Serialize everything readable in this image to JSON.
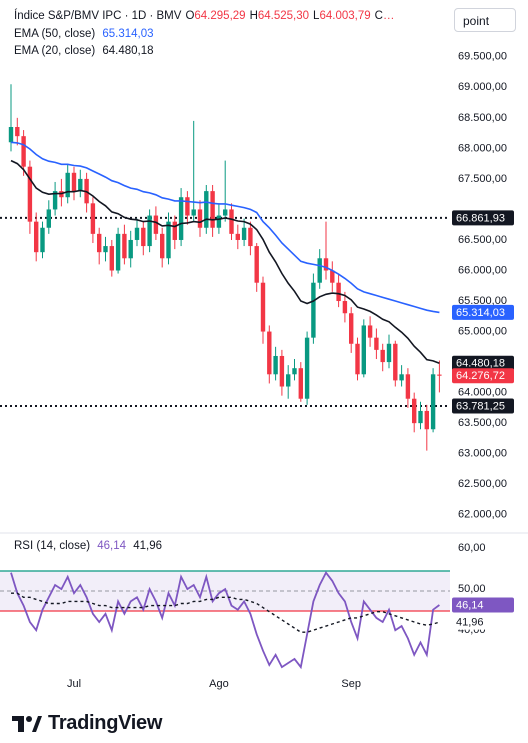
{
  "chart_data": [
    {
      "type": "candlestick",
      "title": "Índice S&P/BMV IPC · 1D · BMV",
      "ohlc_labels": [
        {
          "key": "O",
          "text": "64.295,29"
        },
        {
          "key": "H",
          "text": "64.525,30"
        },
        {
          "key": "L",
          "text": "64.003,79"
        },
        {
          "key": "C",
          "text": "…"
        }
      ],
      "open": [
        68100,
        68350,
        68200,
        67700,
        66800,
        66300,
        66700,
        67000,
        67300,
        67200,
        67600,
        67300,
        67500,
        67100,
        66600,
        66300,
        66400,
        66000,
        66600,
        66200,
        66500,
        66700,
        66400,
        66900,
        66600,
        66200,
        66800,
        66500,
        67200,
        66900,
        67000,
        66700,
        67300,
        66700,
        66900,
        67000,
        66600,
        66500,
        66700,
        66400,
        65800,
        65000,
        64300,
        64600,
        64100,
        64300,
        64400,
        63900,
        64900,
        65800,
        66200,
        66000,
        65800,
        65500,
        65300,
        64800,
        64300,
        65100,
        64900,
        64700,
        64500,
        64800,
        64200,
        64300,
        63900,
        63500,
        63700,
        63400,
        64295.29
      ],
      "high": [
        69050,
        68500,
        68300,
        67800,
        66950,
        66800,
        67150,
        67450,
        67500,
        67750,
        67700,
        67650,
        67600,
        67200,
        66700,
        66550,
        66500,
        66700,
        66750,
        66650,
        66850,
        66800,
        67000,
        67050,
        66700,
        66950,
        66900,
        67350,
        67300,
        68450,
        67150,
        67400,
        67400,
        67100,
        67800,
        67100,
        66750,
        66850,
        66800,
        66450,
        65900,
        65100,
        64750,
        64700,
        64450,
        64550,
        64500,
        65000,
        65950,
        66350,
        66800,
        66150,
        65950,
        65650,
        65400,
        64900,
        65200,
        65250,
        65050,
        64800,
        64950,
        64850,
        64450,
        64400,
        64000,
        63850,
        63800,
        64400,
        64525.3
      ],
      "low": [
        67950,
        68050,
        67550,
        66600,
        66150,
        66200,
        66600,
        66900,
        67050,
        67100,
        67150,
        67200,
        66950,
        66450,
        66100,
        66150,
        65900,
        65950,
        66100,
        66050,
        66400,
        66250,
        66300,
        66500,
        66050,
        66100,
        66350,
        66400,
        66750,
        66800,
        66550,
        66600,
        66550,
        66600,
        66800,
        66500,
        66350,
        66400,
        66250,
        65650,
        64800,
        64150,
        64200,
        63950,
        63900,
        64200,
        63850,
        63800,
        64800,
        65700,
        65850,
        65650,
        65400,
        65150,
        64650,
        64200,
        64250,
        64750,
        64550,
        64350,
        64400,
        64100,
        64100,
        63750,
        63350,
        63400,
        63050,
        63350,
        64003.79
      ],
      "close": [
        68350,
        68200,
        67700,
        66800,
        66300,
        66700,
        67000,
        67300,
        67200,
        67600,
        67300,
        67500,
        67100,
        66600,
        66300,
        66400,
        66000,
        66600,
        66200,
        66500,
        66700,
        66400,
        66900,
        66600,
        66200,
        66800,
        66500,
        67200,
        66900,
        67000,
        66700,
        67300,
        66700,
        66900,
        67000,
        66600,
        66500,
        66700,
        66400,
        65800,
        65000,
        64300,
        64600,
        64100,
        64300,
        64400,
        63900,
        64900,
        65800,
        66200,
        66000,
        65800,
        65500,
        65300,
        64800,
        64300,
        65100,
        64900,
        64700,
        64500,
        64800,
        64200,
        64300,
        63900,
        63500,
        63700,
        63400,
        64300,
        64276.72
      ],
      "up_color": "#089981",
      "down_color": "#f23645",
      "last_price_label": "64.276,72",
      "series": [
        {
          "name": "EMA (50, close)",
          "color": "#2962ff",
          "last_value_label": "65.314,03",
          "values": [
            68100,
            68090,
            68060,
            67990,
            67900,
            67830,
            67790,
            67770,
            67740,
            67740,
            67720,
            67710,
            67680,
            67630,
            67580,
            67530,
            67470,
            67440,
            67390,
            67350,
            67330,
            67290,
            67270,
            67240,
            67190,
            67170,
            67140,
            67140,
            67130,
            67120,
            67110,
            67120,
            67100,
            67090,
            67090,
            67070,
            67050,
            67030,
            67000,
            66950,
            66800,
            66700,
            66580,
            66450,
            66350,
            66250,
            66150,
            66120,
            66100,
            66080,
            66050,
            66000,
            65940,
            65870,
            65790,
            65700,
            65650,
            65620,
            65590,
            65560,
            65530,
            65500,
            65470,
            65440,
            65410,
            65380,
            65350,
            65330,
            65314.03
          ]
        },
        {
          "name": "EMA (20, close)",
          "color": "#131722",
          "last_value_label": "64.480,18",
          "values": [
            67800,
            67750,
            67650,
            67500,
            67350,
            67280,
            67250,
            67260,
            67260,
            67290,
            67290,
            67310,
            67290,
            67220,
            67130,
            67060,
            66960,
            66930,
            66870,
            66840,
            66830,
            66800,
            66810,
            66790,
            66730,
            66740,
            66720,
            66770,
            66780,
            66800,
            66790,
            66840,
            66830,
            66840,
            66860,
            66840,
            66810,
            66800,
            66760,
            66670,
            66510,
            66300,
            66140,
            65950,
            65790,
            65660,
            65500,
            65460,
            65500,
            65570,
            65610,
            65630,
            65620,
            65590,
            65520,
            65400,
            65370,
            65330,
            65270,
            65200,
            65160,
            65070,
            64990,
            64890,
            64760,
            64660,
            64540,
            64520,
            64480.18
          ]
        }
      ],
      "hlines": [
        {
          "value": 66861.93,
          "label": "66.861,93"
        },
        {
          "value": 63781.25,
          "label": "63.781,25"
        }
      ],
      "ylim": [
        61750,
        70430
      ],
      "yticks": [
        {
          "value": 69500,
          "label": "69.500,00"
        },
        {
          "value": 69000,
          "label": "69.000,00"
        },
        {
          "value": 68500,
          "label": "68.500,00"
        },
        {
          "value": 68000,
          "label": "68.000,00"
        },
        {
          "value": 67500,
          "label": "67.500,00"
        },
        {
          "value": 66500,
          "label": "66.500,00"
        },
        {
          "value": 66000,
          "label": "66.000,00"
        },
        {
          "value": 65500,
          "label": "65.500,00"
        },
        {
          "value": 65000,
          "label": "65.000,00"
        },
        {
          "value": 64000,
          "label": "64.000,00"
        },
        {
          "value": 63500,
          "label": "63.500,00"
        },
        {
          "value": 63000,
          "label": "63.000,00"
        },
        {
          "value": 62500,
          "label": "62.500,00"
        },
        {
          "value": 62000,
          "label": "62.000,00"
        }
      ],
      "grid": false
    },
    {
      "type": "line",
      "title": "RSI (14, close)",
      "categories": [
        null,
        null,
        null,
        null,
        null,
        null,
        null,
        null,
        null,
        null,
        "Jul",
        null,
        null,
        null,
        null,
        null,
        null,
        null,
        null,
        null,
        null,
        null,
        null,
        null,
        null,
        null,
        null,
        null,
        null,
        null,
        null,
        null,
        null,
        "Ago",
        null,
        null,
        null,
        null,
        null,
        null,
        null,
        null,
        null,
        null,
        null,
        null,
        null,
        null,
        null,
        null,
        null,
        null,
        null,
        null,
        "Sep",
        null,
        null,
        null,
        null,
        null,
        null,
        null,
        null,
        null,
        null,
        null,
        null,
        null,
        null
      ],
      "series": [
        {
          "color": "#7e57c2",
          "last_value_label": "46,14",
          "values": [
            54,
            49,
            46,
            42,
            40,
            45,
            48,
            51,
            50,
            53,
            49,
            51,
            48,
            44,
            42,
            44,
            40,
            47,
            44,
            47,
            48,
            45,
            50,
            47,
            43,
            49,
            46,
            53,
            50,
            51,
            48,
            53,
            47,
            49,
            50,
            46,
            45,
            47,
            44,
            39,
            35,
            31.5,
            34,
            31,
            32,
            33,
            31,
            39,
            47,
            51,
            54,
            52,
            49,
            47,
            42,
            38,
            47,
            45,
            43,
            42,
            45,
            40,
            41,
            38,
            34,
            37,
            34,
            45,
            46.14
          ]
        },
        {
          "color": "#131722",
          "dashed": true,
          "last_value_label": "41,96",
          "values": [
            49,
            49,
            48,
            48,
            47.5,
            47,
            46.5,
            46.5,
            46.5,
            47,
            47,
            47,
            47,
            46.5,
            46,
            46,
            45.5,
            45.5,
            45.5,
            45.5,
            45.5,
            45.5,
            46,
            46,
            46,
            46,
            46,
            46.5,
            46.5,
            47,
            47,
            47.5,
            47.5,
            48,
            48,
            48,
            47.5,
            47.5,
            47,
            46.5,
            45.5,
            44.5,
            43.5,
            42.5,
            41.5,
            40.5,
            39.5,
            39.5,
            40,
            40.5,
            41,
            41.5,
            42,
            42.5,
            43,
            43,
            43.5,
            44,
            44.5,
            44.5,
            44,
            43.5,
            43,
            42.5,
            42,
            41.5,
            41.2,
            41.5,
            41.96
          ]
        }
      ],
      "ylim": [
        29.8,
        63.2
      ],
      "yticks": [
        {
          "value": 60,
          "label": "60,00"
        },
        {
          "value": 50,
          "label": "50,00"
        },
        {
          "value": 40,
          "label": "40,00"
        }
      ],
      "grid": false
    }
  ],
  "toolbar": {
    "button": "point"
  },
  "footer": {
    "logo": "TradingView"
  }
}
